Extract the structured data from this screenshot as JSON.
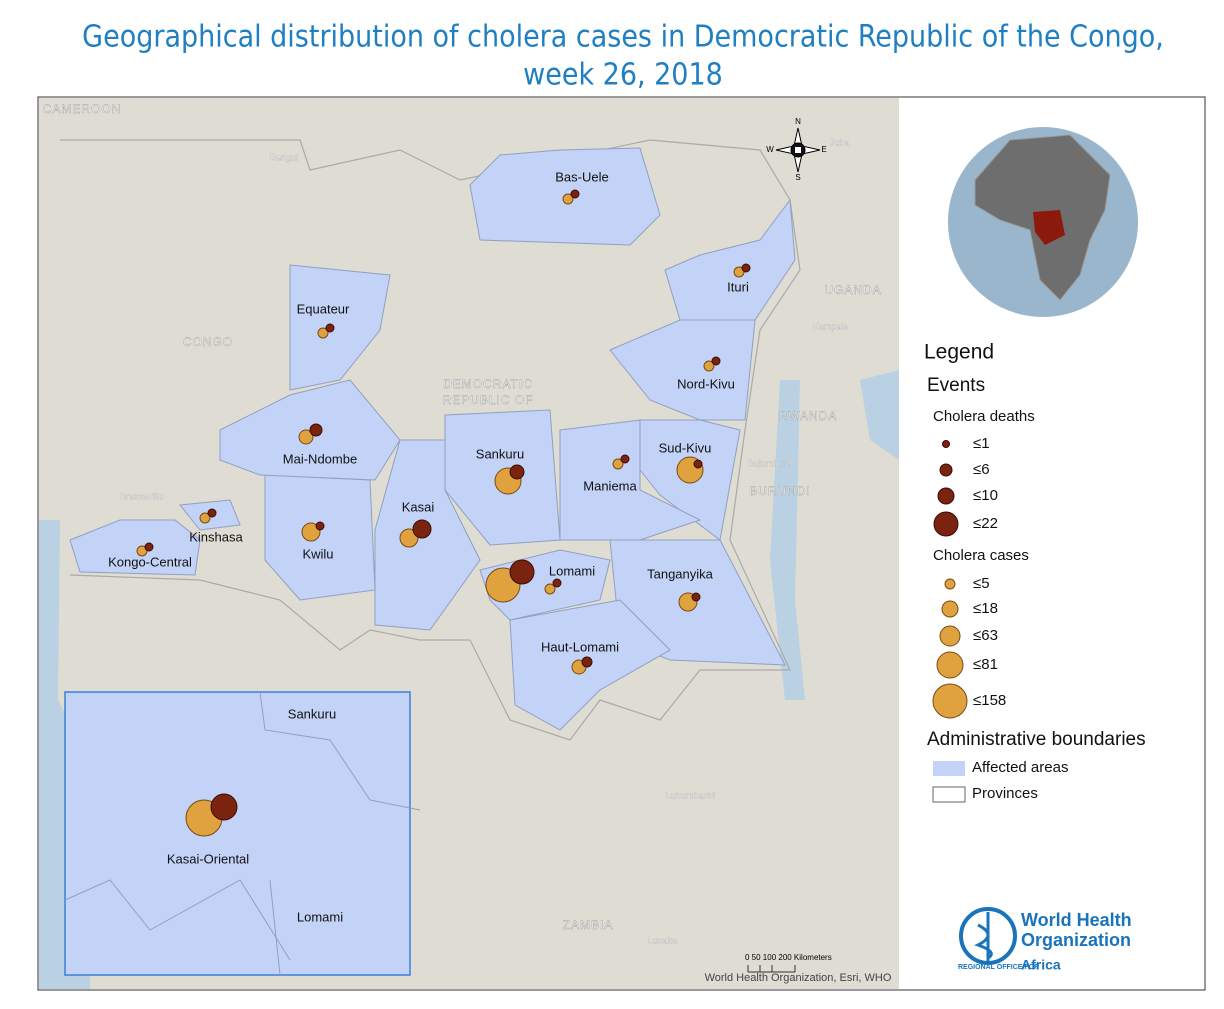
{
  "header": {
    "title_line1": "Geographical distribution of cholera cases in Democratic Republic of the Congo,",
    "title_line2": "week 26, 2018"
  },
  "map": {
    "provinces": [
      "Bas-Uele",
      "Ituri",
      "Equateur",
      "Nord-Kivu",
      "Sud-Kivu",
      "Sankuru",
      "Maniema",
      "Mai-Ndombe",
      "Kasai",
      "Kinshasa",
      "Kwilu",
      "Kongo-Central",
      "Lomami",
      "Tanganyika",
      "Haut-Lomami"
    ],
    "countries": [
      "CAMEROON",
      "CONGO",
      "UGANDA",
      "RWANDA",
      "BURUNDI",
      "DEMOCRATIC",
      "REPUBLIC OF",
      "ZAMBIA"
    ],
    "cities": [
      "Bangui",
      "Juba",
      "Kampala",
      "Bujumbura",
      "Lubumbashi",
      "Brazzaville",
      "Lusaka"
    ],
    "compass": {
      "n": "N",
      "s": "S",
      "e": "E",
      "w": "W"
    },
    "scale": {
      "ticks": "0  50 100     200 Kilometers"
    },
    "credits": "World Health Organization, Esri, WHO"
  },
  "inset": {
    "labels": [
      "Sankuru",
      "Kasai-Oriental",
      "Lomami"
    ]
  },
  "legend": {
    "title": "Legend",
    "events": "Events",
    "deaths_title": "Cholera deaths",
    "deaths": [
      "≤1",
      "≤6",
      "≤10",
      "≤22"
    ],
    "cases_title": "Cholera cases",
    "cases": [
      "≤5",
      "≤18",
      "≤63",
      "≤81",
      "≤158"
    ],
    "admin_title": "Administrative boundaries",
    "admin": [
      "Affected areas",
      "Provinces"
    ]
  },
  "logo": {
    "line1": "World Health",
    "line2": "Organization",
    "region": "REGIONAL OFFICE FOR",
    "africa": "Africa"
  }
}
